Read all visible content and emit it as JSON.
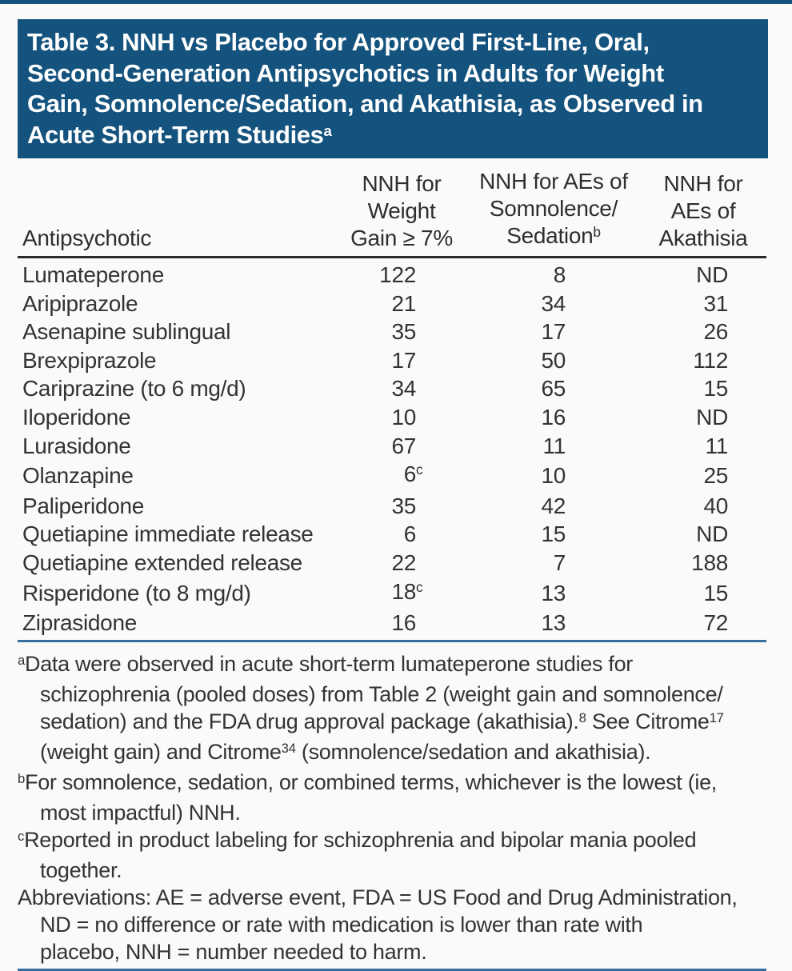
{
  "accent_color": "#14537E",
  "rule_blue_color": "#356E9E",
  "rule_dark_color": "#2b2b2b",
  "title": {
    "lines": [
      "Table 3. NNH vs Placebo for Approved First-Line, Oral,",
      "Second-Generation Antipsychotics in Adults for Weight",
      "Gain, Somnolence/Sedation, and Akathisia, as Observed in",
      "Acute Short-Term Studies^{a}"
    ]
  },
  "table": {
    "columns": [
      {
        "id": "antipsychotic",
        "label_lines": [
          "Antipsychotic"
        ]
      },
      {
        "id": "nnh-weight-gain",
        "label_lines": [
          "NNH for",
          "Weight",
          "Gain ≥ 7%"
        ]
      },
      {
        "id": "nnh-somnolence-sedation",
        "label_lines": [
          "NNH for AEs of",
          "Somnolence/",
          "Sedation^{b}"
        ]
      },
      {
        "id": "nnh-akathisia",
        "label_lines": [
          "NNH for",
          "AEs of",
          "Akathisia"
        ]
      }
    ],
    "rows": [
      {
        "drug": "Lumateperone",
        "weight_gain": "122",
        "somnolence_sedation": "8",
        "akathisia": "ND"
      },
      {
        "drug": "Aripiprazole",
        "weight_gain": "21",
        "somnolence_sedation": "34",
        "akathisia": "31"
      },
      {
        "drug": "Asenapine sublingual",
        "weight_gain": "35",
        "somnolence_sedation": "17",
        "akathisia": "26"
      },
      {
        "drug": "Brexpiprazole",
        "weight_gain": "17",
        "somnolence_sedation": "50",
        "akathisia": "112"
      },
      {
        "drug": "Cariprazine (to 6 mg/d)",
        "weight_gain": "34",
        "somnolence_sedation": "65",
        "akathisia": "15"
      },
      {
        "drug": "Iloperidone",
        "weight_gain": "10",
        "somnolence_sedation": "16",
        "akathisia": "ND"
      },
      {
        "drug": "Lurasidone",
        "weight_gain": "67",
        "somnolence_sedation": "11",
        "akathisia": "11"
      },
      {
        "drug": "Olanzapine",
        "weight_gain": "6^{c}",
        "somnolence_sedation": "10",
        "akathisia": "25"
      },
      {
        "drug": "Paliperidone",
        "weight_gain": "35",
        "somnolence_sedation": "42",
        "akathisia": "40"
      },
      {
        "drug": "Quetiapine immediate release",
        "weight_gain": "6",
        "somnolence_sedation": "15",
        "akathisia": "ND"
      },
      {
        "drug": "Quetiapine extended release",
        "weight_gain": "22",
        "somnolence_sedation": "7",
        "akathisia": "188"
      },
      {
        "drug": "Risperidone (to 8 mg/d)",
        "weight_gain": "18^{c}",
        "somnolence_sedation": "13",
        "akathisia": "15"
      },
      {
        "drug": "Ziprasidone",
        "weight_gain": "16",
        "somnolence_sedation": "13",
        "akathisia": "72"
      }
    ]
  },
  "footnotes": [
    {
      "id": "a",
      "lines": [
        "^{a}Data were observed in acute short-term lumateperone studies for",
        "schizophrenia (pooled doses) from Table 2 (weight gain and somnolence/",
        "sedation) and the FDA drug approval package (akathisia).^{8} See Citrome^{17}",
        "(weight gain) and Citrome^{34} (somnolence/sedation and akathisia)."
      ]
    },
    {
      "id": "b",
      "lines": [
        "^{b}For somnolence, sedation, or combined terms, whichever is the lowest (ie,",
        "most impactful) NNH."
      ]
    },
    {
      "id": "c",
      "lines": [
        "^{c}Reported in product labeling for schizophrenia and bipolar mania pooled",
        "together."
      ]
    },
    {
      "id": "abbreviations",
      "lines": [
        "Abbreviations: AE = adverse event, FDA = US Food and Drug Administration,",
        "ND = no difference or rate with medication is lower than rate with",
        "placebo, NNH = number needed to harm."
      ]
    }
  ]
}
